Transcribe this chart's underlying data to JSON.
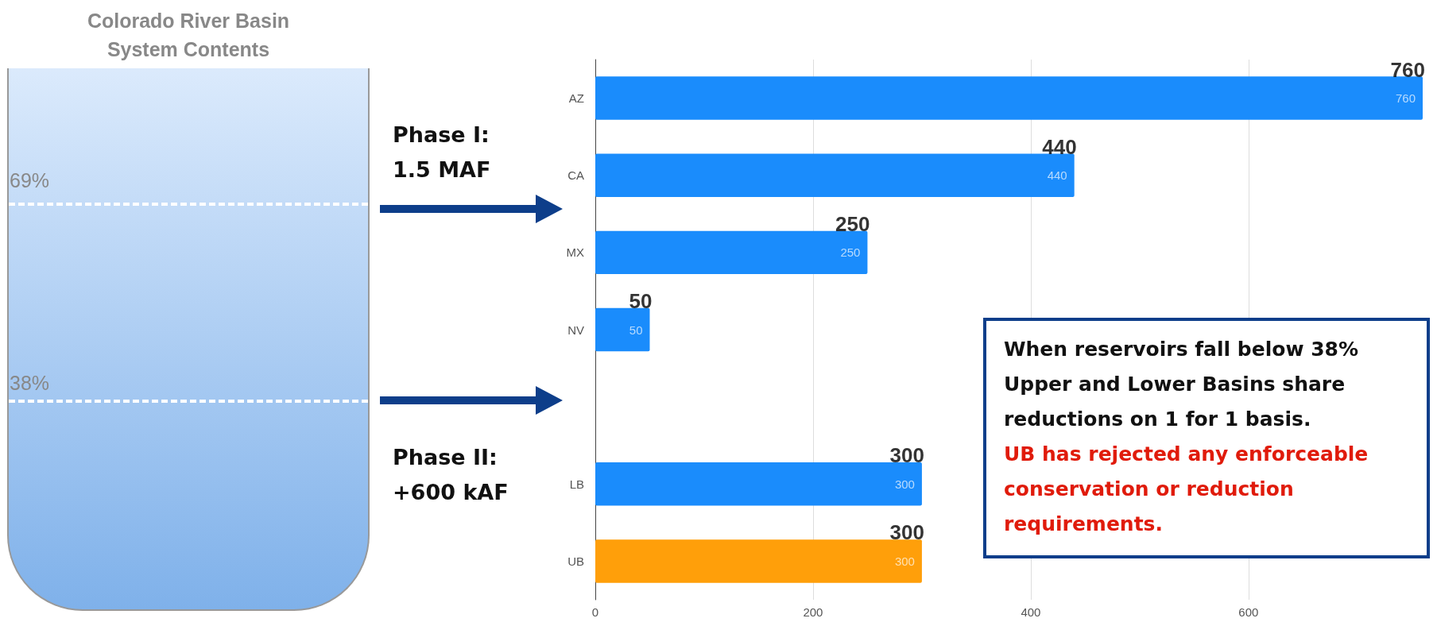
{
  "chart_data": {
    "type": "bar",
    "orientation": "horizontal",
    "categories": [
      "AZ",
      "CA",
      "MX",
      "NV",
      null,
      "LB",
      "UB"
    ],
    "values": [
      760,
      440,
      250,
      50,
      null,
      300,
      300
    ],
    "colors": [
      "#1a8cfc",
      "#1a8cfc",
      "#1a8cfc",
      "#1a8cfc",
      "#1a8cfc",
      "#1a8cfc",
      "#ff9f0a"
    ],
    "value_labels": [
      "760",
      "440",
      "250",
      "50",
      null,
      "300",
      "300"
    ],
    "xlim": [
      0,
      760
    ],
    "xticks": [
      0,
      200,
      400,
      600
    ],
    "grid": "x",
    "annotations": [
      "Colorado River Basin",
      "System Contents",
      "69%",
      "38%",
      "Phase I:",
      "1.5 MAF",
      "Phase II:",
      "+600 kAF",
      "When reservoirs fall below 38%",
      "Upper and Lower Basins share",
      "reductions on 1 for 1 basis.",
      "UB has rejected any enforceable",
      "conservation or reduction",
      "requirements.",
      {
        "text": "760",
        "x": 760,
        "y": "AZ"
      },
      {
        "text": "440",
        "x": 440,
        "y": "CA"
      },
      {
        "text": "250",
        "x": 250,
        "y": "MX"
      },
      {
        "text": "50",
        "x": 50,
        "y": "NV"
      },
      {
        "text": "300",
        "x": 300,
        "y": "LB"
      },
      {
        "text": "300",
        "x": 300,
        "y": "UB"
      }
    ]
  }
}
